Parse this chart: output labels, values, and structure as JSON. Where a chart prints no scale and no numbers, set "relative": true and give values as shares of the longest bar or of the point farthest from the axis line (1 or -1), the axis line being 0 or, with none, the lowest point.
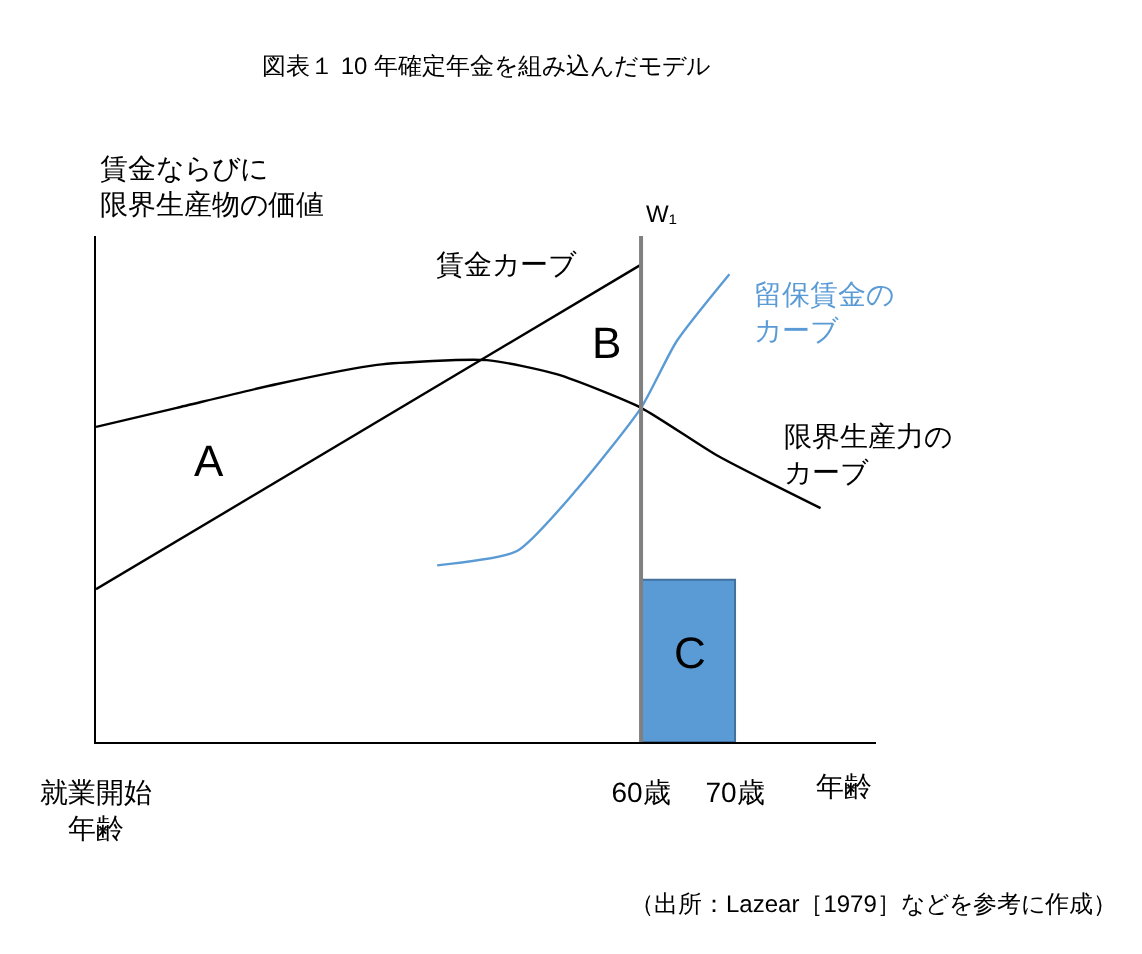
{
  "chart_data": {
    "type": "line",
    "relative": true,
    "title": "図表１ 10 年確定年金を組み込んだモデル",
    "ylabel": "賃金ならびに限界生産物の価値",
    "xlabel": "年齢",
    "xlim": [
      2,
      85
    ],
    "xticks": [
      {
        "value": 2,
        "label": "就業開始年齢"
      },
      {
        "value": 60,
        "label": "60歳"
      },
      {
        "value": 70,
        "label": "70歳"
      }
    ],
    "series": [
      {
        "name": "賃金カーブ",
        "color": "#000000",
        "x": [
          2,
          60
        ],
        "values": [
          0.32,
          1
        ]
      },
      {
        "name": "限界生産力のカーブ",
        "color": "#000000",
        "x": [
          2,
          10.6,
          21.3,
          31.9,
          43.6,
          51.1,
          60,
          68.1,
          79.1
        ],
        "values": [
          0.66,
          0.7,
          0.75,
          0.79,
          0.8,
          0.77,
          0.7,
          0.6,
          0.49
        ]
      },
      {
        "name": "留保賃金のカーブ",
        "color": "#5b9bd5",
        "x": [
          38.3,
          46.8,
          53.2,
          60,
          63.8,
          69.4
        ],
        "values": [
          0.37,
          0.4,
          0.53,
          0.7,
          0.84,
          0.98
        ]
      },
      {
        "type": "bar",
        "color": "#5b9bd5",
        "x": [
          65
        ],
        "values": [
          0.34
        ]
      }
    ],
    "ref_lines": [
      {
        "axis": "x",
        "value": 60,
        "label": "W₁",
        "color": "#808080"
      }
    ],
    "annotations": [
      "A",
      "B",
      "C",
      "（出所：Lazear［1979］などを参考に作成）"
    ],
    "grid": false,
    "legend": false,
    "marker": "none",
    "line_style": "solid"
  }
}
